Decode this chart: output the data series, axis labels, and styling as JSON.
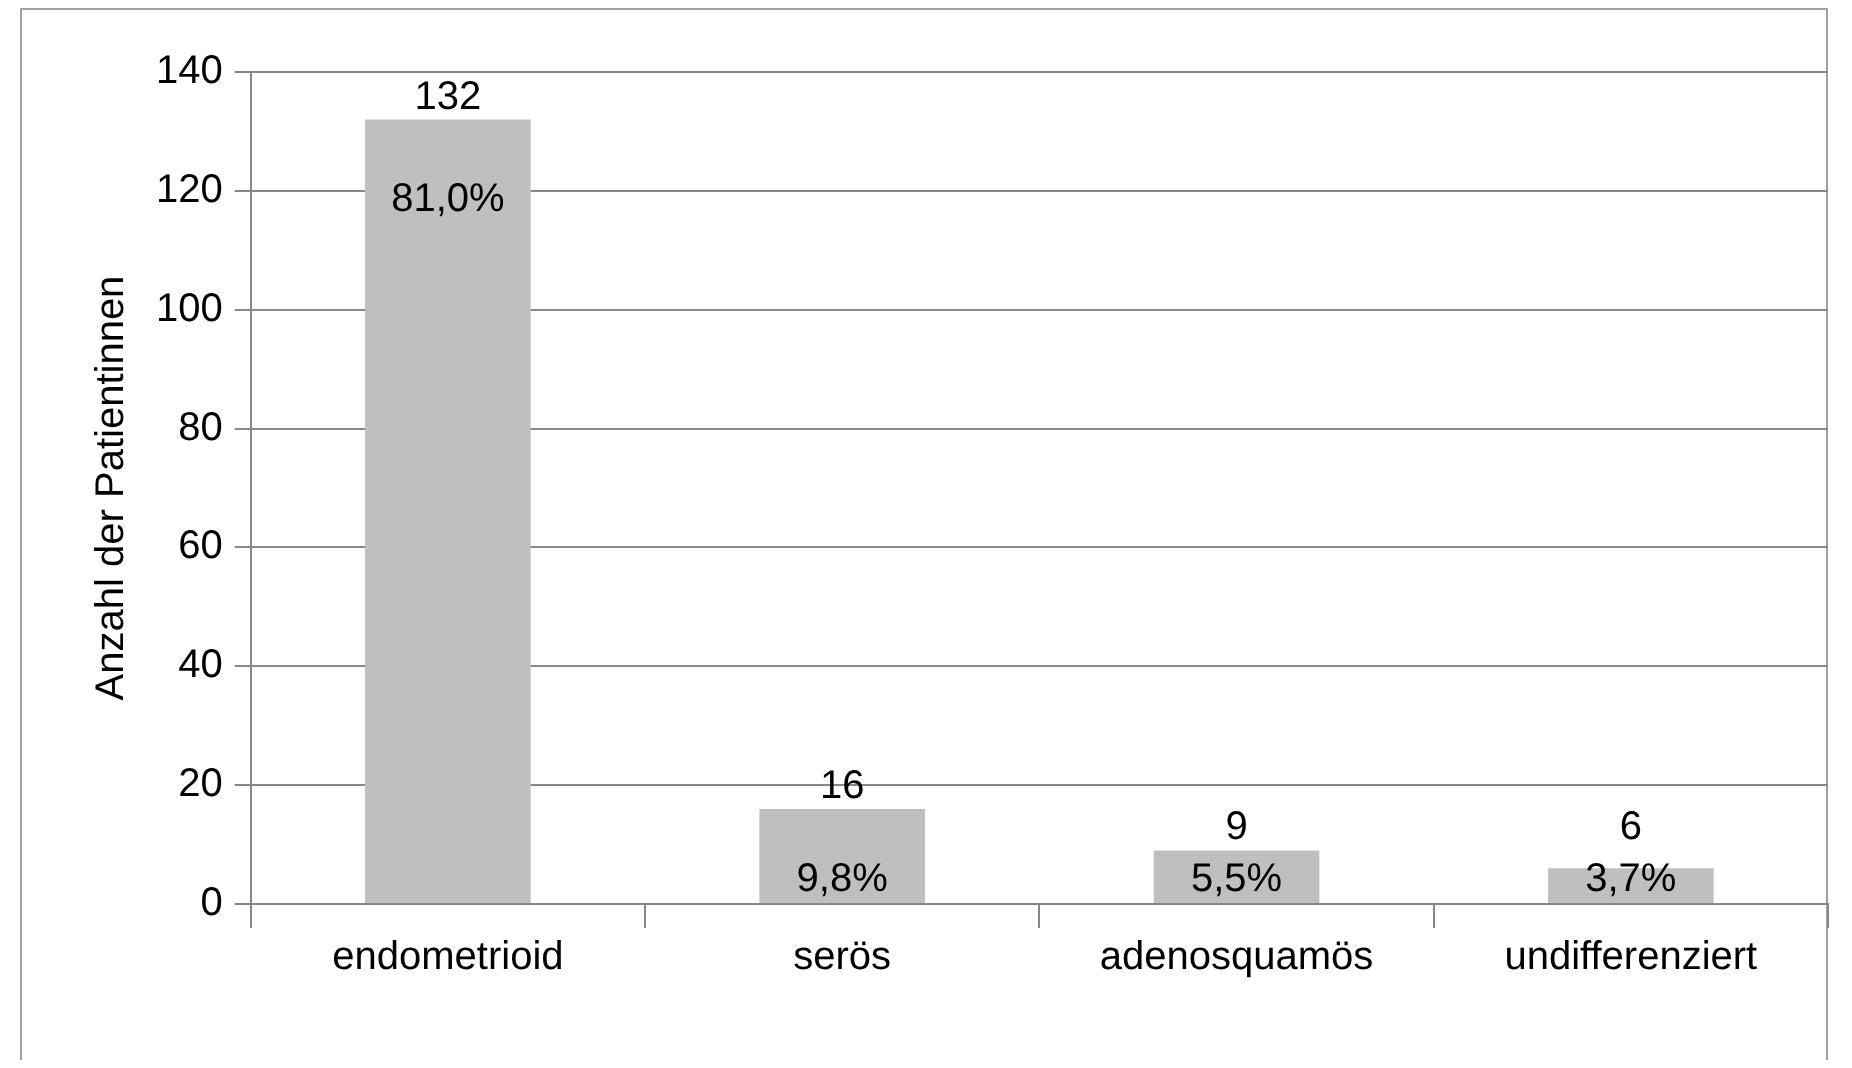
{
  "chart_data": {
    "type": "bar",
    "ylabel": "Anzahl der Patientinnen",
    "categories": [
      "endometrioid",
      "serös",
      "adenosquamös",
      "undifferenziert"
    ],
    "values": [
      132,
      16,
      9,
      6
    ],
    "color": "#bfbfbf",
    "ylim": [
      0,
      140
    ],
    "yticks": [
      0,
      20,
      40,
      60,
      80,
      100,
      120,
      140
    ],
    "grid": "y",
    "data_labels": true,
    "annotations": [
      {
        "text": "81,0%",
        "x": "endometrioid",
        "y": 132
      },
      {
        "text": "9,8%",
        "x": "serös",
        "y": 16
      },
      {
        "text": "5,5%",
        "x": "adenosquamös",
        "y": 9
      },
      {
        "text": "3,7%",
        "x": "undifferenziert",
        "y": 6
      }
    ]
  }
}
